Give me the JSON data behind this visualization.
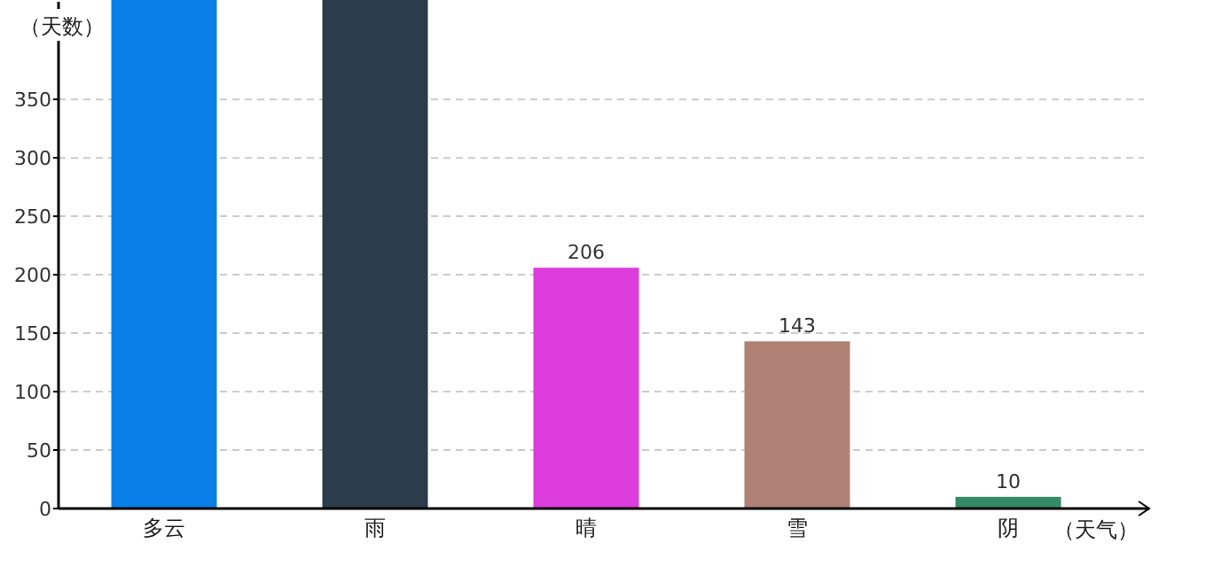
{
  "chart_data": {
    "type": "bar",
    "xlabel": "（天气）",
    "ylabel": "（天数）",
    "categories": [
      "多云",
      "雨",
      "晴",
      "雪",
      "阴"
    ],
    "values": [
      435,
      435,
      206,
      143,
      10
    ],
    "colors": [
      "#0880e8",
      "#2b3c4b",
      "#dd3cdc",
      "#b08276",
      "#348a66"
    ],
    "value_labels": [
      null,
      null,
      "206",
      "143",
      "10"
    ],
    "ylim": [
      0,
      435
    ],
    "yticks": [
      0,
      50,
      100,
      150,
      200,
      250,
      300,
      350
    ],
    "grid": "y"
  }
}
